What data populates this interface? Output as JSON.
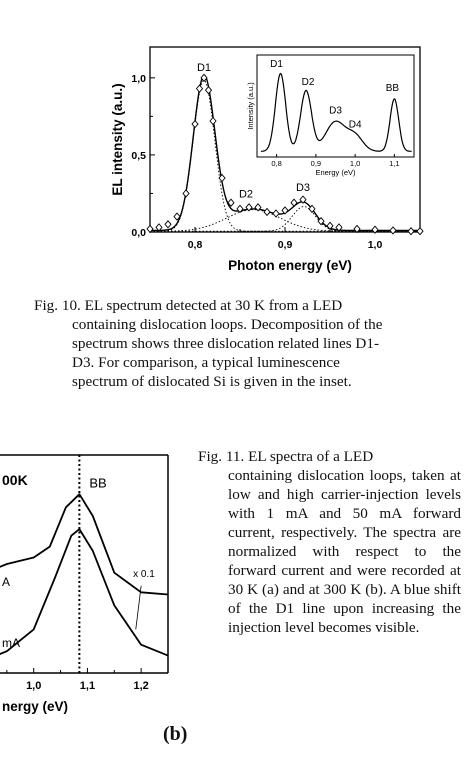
{
  "figure10": {
    "main_chart": {
      "chart_data": {
        "type": "line",
        "xlabel": "Photon energy (eV)",
        "ylabel": "EL intensity (a.u.)",
        "xlim": [
          0.75,
          1.05
        ],
        "ylim": [
          0.0,
          1.2
        ],
        "xticks": [
          "0,8",
          "0,9",
          "1,0"
        ],
        "yticks": [
          "0,0",
          "0,5",
          "1,0"
        ],
        "peaks": [
          {
            "label": "D1",
            "x": 0.81,
            "y": 1.0
          },
          {
            "label": "D2",
            "x": 0.87,
            "y": 0.16
          },
          {
            "label": "D3",
            "x": 0.92,
            "y": 0.2
          }
        ],
        "measured_points": [
          [
            0.75,
            0.02
          ],
          [
            0.76,
            0.03
          ],
          [
            0.77,
            0.05
          ],
          [
            0.78,
            0.1
          ],
          [
            0.79,
            0.25
          ],
          [
            0.8,
            0.7
          ],
          [
            0.805,
            0.93
          ],
          [
            0.81,
            1.0
          ],
          [
            0.815,
            0.92
          ],
          [
            0.82,
            0.72
          ],
          [
            0.83,
            0.35
          ],
          [
            0.84,
            0.19
          ],
          [
            0.85,
            0.15
          ],
          [
            0.86,
            0.16
          ],
          [
            0.87,
            0.16
          ],
          [
            0.88,
            0.13
          ],
          [
            0.89,
            0.12
          ],
          [
            0.9,
            0.14
          ],
          [
            0.91,
            0.19
          ],
          [
            0.92,
            0.21
          ],
          [
            0.93,
            0.15
          ],
          [
            0.94,
            0.07
          ],
          [
            0.95,
            0.04
          ],
          [
            0.96,
            0.03
          ],
          [
            0.98,
            0.02
          ],
          [
            1.0,
            0.015
          ],
          [
            1.02,
            0.01
          ],
          [
            1.04,
            0.005
          ],
          [
            1.05,
            0.005
          ]
        ],
        "decomposition": [
          {
            "center": 0.81,
            "amplitude": 0.98,
            "width": 0.012
          },
          {
            "center": 0.865,
            "amplitude": 0.14,
            "width": 0.03
          },
          {
            "center": 0.921,
            "amplitude": 0.16,
            "width": 0.013
          }
        ]
      }
    },
    "inset_chart": {
      "chart_data": {
        "type": "line",
        "xlabel": "Energy (eV)",
        "ylabel": "Intensity (a.u.)",
        "xlim": [
          0.75,
          1.15
        ],
        "xticks": [
          "0,8",
          "0,9",
          "1,0",
          "1,1"
        ],
        "peaks": [
          {
            "label": "D1",
            "x": 0.81,
            "y": 1.0
          },
          {
            "label": "D2",
            "x": 0.875,
            "y": 0.78
          },
          {
            "label": "D3",
            "x": 0.95,
            "y": 0.42
          },
          {
            "label": "D4",
            "x": 1.0,
            "y": 0.25
          },
          {
            "label": "BB",
            "x": 1.1,
            "y": 0.68
          }
        ],
        "components": [
          {
            "center": 0.81,
            "amplitude": 0.95,
            "width": 0.013
          },
          {
            "center": 0.875,
            "amplitude": 0.74,
            "width": 0.014
          },
          {
            "center": 0.95,
            "amplitude": 0.36,
            "width": 0.025
          },
          {
            "center": 1.0,
            "amplitude": 0.18,
            "width": 0.02
          },
          {
            "center": 1.1,
            "amplitude": 0.64,
            "width": 0.011
          }
        ]
      }
    },
    "caption": [
      "Fig. 10. EL spectrum detected at 30 K from a LED",
      "containing dislocation loops. Decomposition of the",
      "spectrum shows three dislocation related lines D1-",
      "D3. For comparison, a typical luminescence",
      "spectrum of dislocated Si is given in the inset."
    ]
  },
  "figure11b": {
    "chart_data": {
      "type": "line",
      "xlabel": "nergy (eV)",
      "xlim": [
        0.9,
        1.25
      ],
      "xticks": [
        "1,0",
        "1,1",
        "1,2"
      ],
      "title": "00K",
      "annotations": [
        {
          "text": "BB",
          "x": 1.085
        },
        {
          "text": "x 0.1",
          "x": 1.2
        },
        {
          "text": "A",
          "x": 0.92
        },
        {
          "text": "mA",
          "x": 0.92
        }
      ],
      "series": [
        {
          "name": "upper",
          "points": [
            [
              0.9,
              0.45
            ],
            [
              0.95,
              0.5
            ],
            [
              1.0,
              0.53
            ],
            [
              1.03,
              0.58
            ],
            [
              1.06,
              0.76
            ],
            [
              1.085,
              0.82
            ],
            [
              1.11,
              0.72
            ],
            [
              1.15,
              0.46
            ],
            [
              1.2,
              0.37
            ],
            [
              1.25,
              0.36
            ]
          ]
        },
        {
          "name": "lower",
          "points": [
            [
              0.9,
              0.05
            ],
            [
              0.95,
              0.1
            ],
            [
              1.0,
              0.2
            ],
            [
              1.04,
              0.44
            ],
            [
              1.07,
              0.63
            ],
            [
              1.085,
              0.66
            ],
            [
              1.11,
              0.56
            ],
            [
              1.15,
              0.31
            ],
            [
              1.2,
              0.13
            ],
            [
              1.25,
              0.08
            ]
          ]
        }
      ],
      "vline_x": 1.085
    },
    "panel_label": "(b)"
  },
  "figure11_caption": {
    "first": "Fig. 11. EL spectra of a LED",
    "rest": "containing dislocation loops, taken at low and high carrier-injection levels with 1 mA and 50 mA forward current, respectively. The spectra are normalized with respect to the forward current and were recorded at 30 K (a) and at 300 K (b). A blue shift of the D1 line upon increasing the injection level becomes visible."
  }
}
